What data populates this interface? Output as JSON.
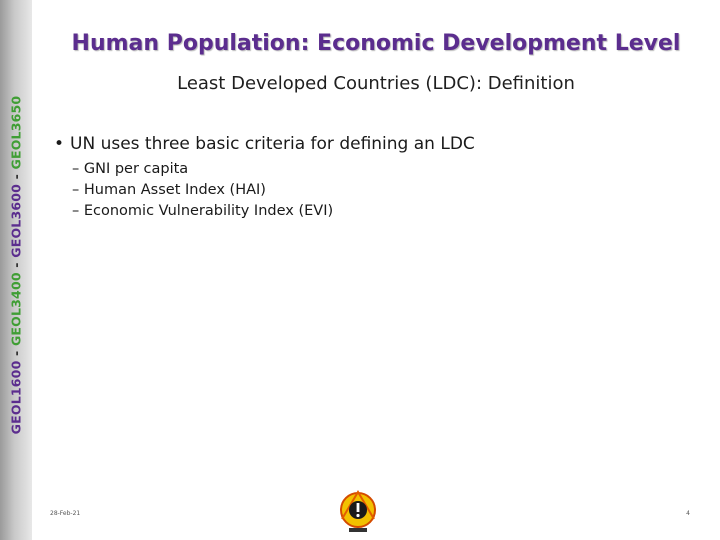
{
  "sidebar": {
    "course1": "GEOL1600",
    "sep1": " - ",
    "course2": "GEOL3400",
    "sep2": " - ",
    "course3": "GEOL3600",
    "sep3": " - ",
    "course4": "GEOL3650"
  },
  "slide": {
    "title": "Human Population: Economic Development Level",
    "subtitle": "Least Developed Countries (LDC): Definition",
    "bullet_marker": "•",
    "bullet": "UN uses three basic criteria for defining an LDC",
    "sub_items": [
      "– GNI per capita",
      "– Human Asset Index (HAI)",
      "– Economic Vulnerability Index (EVI)"
    ]
  },
  "footer": {
    "date": "28-Feb-21",
    "page": "4"
  },
  "colors": {
    "title": "#5b2d8e",
    "purple": "#5b2d8e",
    "green": "#3f9e34"
  }
}
